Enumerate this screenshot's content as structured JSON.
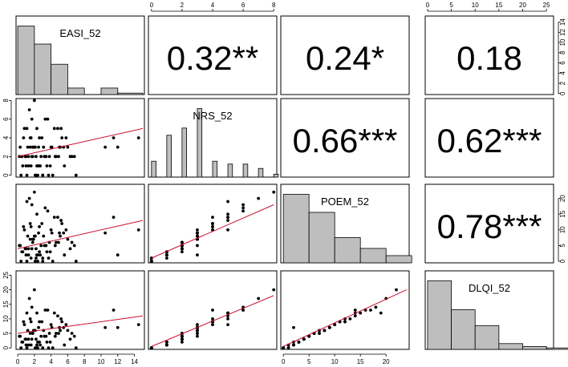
{
  "chart_data": {
    "type": "scatter",
    "title": "",
    "variables": [
      "EASI_52",
      "NRS_52",
      "POEM_52",
      "DLQI_52"
    ],
    "axis_ticks": {
      "EASI_52": [
        "0",
        "2",
        "4",
        "6",
        "8",
        "10",
        "12",
        "14"
      ],
      "NRS_52": [
        "0",
        "2",
        "4",
        "6",
        "8"
      ],
      "POEM_52": [
        "0",
        "5",
        "10",
        "15",
        "20"
      ],
      "DLQI_52": [
        "0",
        "5",
        "10",
        "15",
        "20",
        "25"
      ]
    },
    "ranges": {
      "EASI_52": [
        -0.2,
        15.2
      ],
      "NRS_52": [
        -0.2,
        8.2
      ],
      "POEM_52": [
        -0.5,
        24.5
      ],
      "DLQI_52": [
        -0.5,
        26.5
      ]
    },
    "correlations": [
      {
        "row": 0,
        "col": 1,
        "label": "0.32**"
      },
      {
        "row": 0,
        "col": 2,
        "label": "0.24*"
      },
      {
        "row": 0,
        "col": 3,
        "label": "0.18"
      },
      {
        "row": 1,
        "col": 2,
        "label": "0.66***"
      },
      {
        "row": 1,
        "col": 3,
        "label": "0.62***"
      },
      {
        "row": 2,
        "col": 3,
        "label": "0.78***"
      }
    ],
    "histograms": {
      "EASI_52": {
        "bins": [
          [
            0,
            2,
            0.95
          ],
          [
            2,
            4,
            0.7
          ],
          [
            4,
            6,
            0.42
          ],
          [
            6,
            8,
            0.09
          ],
          [
            8,
            10,
            0.0
          ],
          [
            10,
            12,
            0.09
          ],
          [
            12,
            15,
            0.02
          ]
        ]
      },
      "NRS_52": {
        "bins": [
          [
            0,
            0.3,
            0.22
          ],
          [
            1,
            1.3,
            0.58
          ],
          [
            2,
            2.3,
            0.68
          ],
          [
            3,
            3.3,
            0.95
          ],
          [
            4,
            4.3,
            0.22
          ],
          [
            5,
            5.3,
            0.18
          ],
          [
            6,
            6.3,
            0.18
          ],
          [
            7,
            7.3,
            0.12
          ],
          [
            8,
            8.3,
            0.04
          ]
        ]
      },
      "POEM_52": {
        "bins": [
          [
            0,
            5,
            0.95
          ],
          [
            5,
            10,
            0.7
          ],
          [
            10,
            15,
            0.35
          ],
          [
            15,
            20,
            0.2
          ],
          [
            20,
            25,
            0.1
          ]
        ]
      },
      "DLQI_52": {
        "bins": [
          [
            0,
            5,
            0.95
          ],
          [
            5,
            10,
            0.55
          ],
          [
            10,
            15,
            0.33
          ],
          [
            15,
            20,
            0.08
          ],
          [
            20,
            25,
            0.04
          ],
          [
            25,
            30,
            0.02
          ]
        ]
      }
    },
    "regression_lines": {
      "NRS_52~EASI_52": [
        [
          0,
          2.0
        ],
        [
          15,
          5.0
        ]
      ],
      "POEM_52~EASI_52": [
        [
          0,
          4.0
        ],
        [
          15,
          13.0
        ]
      ],
      "DLQI_52~EASI_52": [
        [
          0,
          5.0
        ],
        [
          15,
          11.0
        ]
      ],
      "POEM_52~NRS_52": [
        [
          0,
          1.0
        ],
        [
          8,
          18.0
        ]
      ],
      "DLQI_52~NRS_52": [
        [
          0,
          0.5
        ],
        [
          8,
          18.0
        ]
      ],
      "DLQI_52~POEM_52": [
        [
          0,
          0.5
        ],
        [
          24,
          20.0
        ]
      ]
    },
    "scatter": {
      "EASI_52": [
        0.3,
        0.5,
        0.8,
        1.0,
        1.1,
        1.2,
        1.3,
        1.5,
        1.6,
        1.7,
        1.8,
        1.9,
        2.0,
        2.1,
        2.2,
        2.3,
        2.4,
        2.5,
        2.6,
        2.8,
        3.0,
        3.1,
        3.3,
        3.5,
        3.8,
        4.0,
        4.2,
        4.5,
        4.8,
        5.0,
        5.3,
        5.6,
        6.0,
        6.5,
        7.0,
        0.6,
        0.9,
        1.4,
        1.6,
        2.0,
        2.2,
        2.7,
        3.2,
        3.6,
        4.1,
        4.6,
        5.2,
        5.8,
        0.4,
        1.0,
        1.3,
        1.8,
        2.4,
        2.9,
        3.4,
        3.9,
        4.4,
        5.1,
        6.3,
        10.5,
        11.5,
        12.0,
        14.5,
        1.1,
        1.7,
        2.1,
        2.6,
        3.0,
        0.2,
        0.7,
        1.5,
        2.3,
        3.7,
        4.9,
        5.5,
        6.8
      ],
      "NRS_52": [
        3,
        2,
        5,
        1,
        0,
        3,
        2,
        4,
        1,
        6,
        2,
        3,
        8,
        0,
        2,
        5,
        1,
        3,
        4,
        2,
        0,
        3,
        6,
        1,
        2,
        3,
        0,
        2,
        5,
        3,
        4,
        1,
        3,
        2,
        0,
        1,
        2,
        7,
        4,
        3,
        0,
        1,
        2,
        6,
        3,
        2,
        5,
        4,
        0,
        2,
        1,
        3,
        0,
        4,
        2,
        1,
        5,
        3,
        2,
        3,
        4,
        3,
        4,
        5,
        2,
        3,
        1,
        0,
        2,
        4,
        3,
        1,
        0,
        2,
        3,
        2
      ],
      "POEM_52": [
        5,
        3,
        10,
        2,
        0,
        8,
        4,
        12,
        1,
        18,
        6,
        7,
        22,
        0,
        4,
        15,
        2,
        9,
        11,
        5,
        1,
        8,
        17,
        3,
        6,
        10,
        0,
        5,
        14,
        9,
        12,
        2,
        7,
        6,
        0,
        3,
        4,
        20,
        11,
        8,
        1,
        2,
        5,
        16,
        9,
        6,
        13,
        10,
        0,
        4,
        2,
        7,
        0,
        12,
        5,
        3,
        14,
        8,
        4,
        9,
        14,
        2,
        10,
        19,
        4,
        8,
        3,
        0,
        5,
        11,
        7,
        2,
        1,
        6,
        9,
        5
      ],
      "DLQI_52": [
        4,
        2,
        8,
        1,
        0,
        6,
        3,
        10,
        1,
        14,
        5,
        6,
        20,
        0,
        3,
        12,
        2,
        7,
        9,
        4,
        0,
        6,
        13,
        2,
        5,
        8,
        0,
        4,
        11,
        7,
        9,
        1,
        6,
        5,
        0,
        2,
        3,
        17,
        9,
        6,
        0,
        1,
        4,
        13,
        7,
        5,
        10,
        8,
        0,
        3,
        1,
        5,
        0,
        9,
        4,
        2,
        12,
        6,
        3,
        7,
        13,
        7,
        8,
        12,
        3,
        6,
        2,
        0,
        4,
        9,
        5,
        1,
        0,
        5,
        7,
        4
      ]
    },
    "colors": {
      "histogram_fill": "#bebebe",
      "regression": "#c8102e",
      "points": "#000000"
    }
  }
}
